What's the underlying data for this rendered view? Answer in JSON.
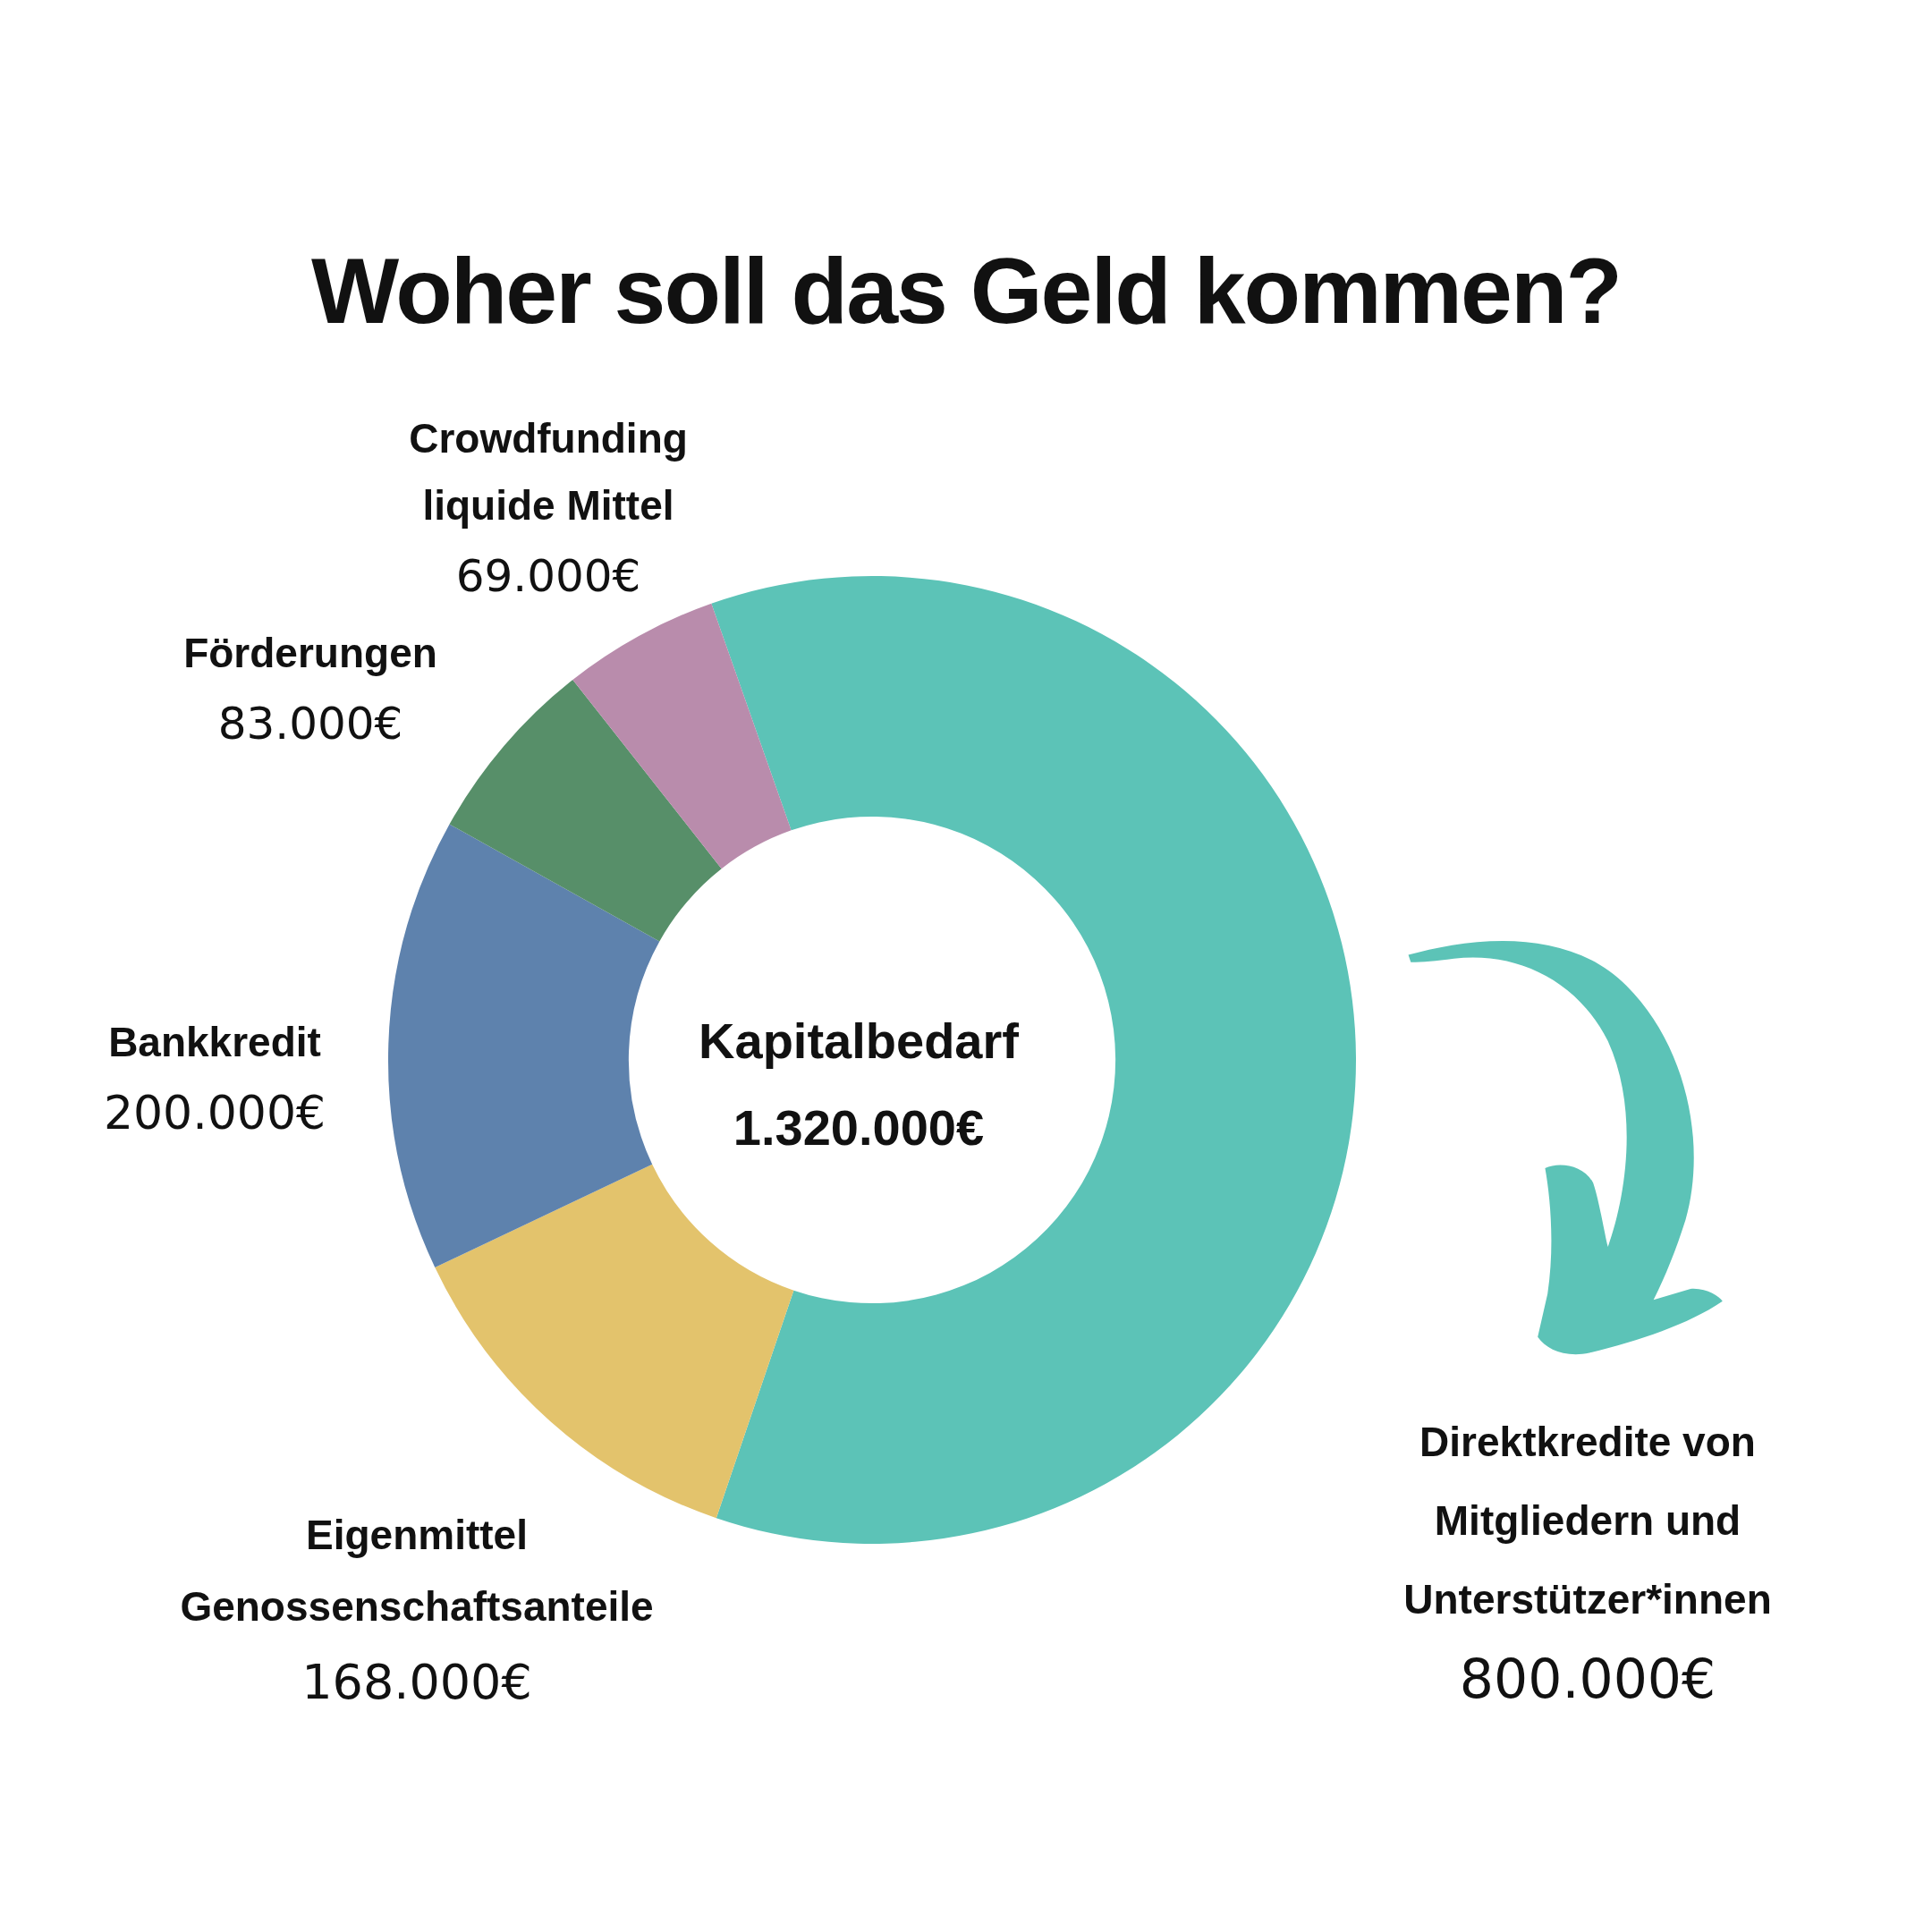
{
  "chart_data": {
    "type": "donut",
    "title": "Woher soll das Geld kommen?",
    "categories": [
      "Direktkredite von Mitgliedern und Unterstützer*innen",
      "Eigenmittel Genossenschaftsanteile",
      "Bankkredit",
      "Förderungen",
      "Crowdfunding liquide Mittel"
    ],
    "values": [
      800000,
      168000,
      200000,
      83000,
      69000
    ],
    "colors": [
      "#5cc3b7",
      "#e3c36c",
      "#5e82ad",
      "#578f69",
      "#b98cac"
    ],
    "value_labels": [
      "800.000€",
      "168.000€",
      "200.000€",
      "83.000€",
      "69.000€"
    ],
    "annotations": [
      "Kapitalbedarf",
      "1.320.000€"
    ]
  }
}
